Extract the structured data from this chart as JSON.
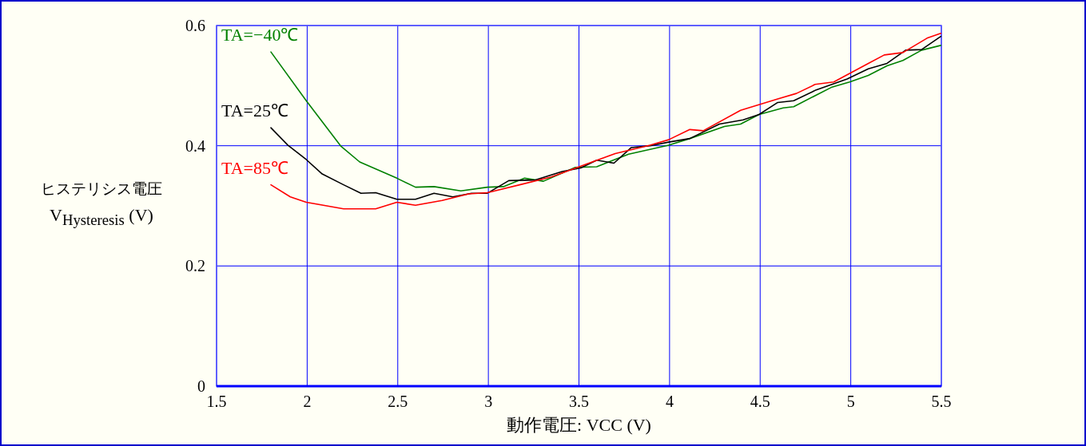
{
  "chart_data": {
    "type": "line",
    "xlabel": "動作電圧: VCC (V)",
    "ylabel": "ヒステリシス電圧\nV$_{Hysteresis}$ (V)",
    "xlim": [
      1.5,
      5.5
    ],
    "xticks": [
      1.5,
      2,
      2.5,
      3,
      3.5,
      4,
      4.5,
      5,
      5.5
    ],
    "ylim": [
      0,
      0.6
    ],
    "yticks": [
      0,
      0.2,
      0.4,
      0.6
    ],
    "grid": true,
    "series": [
      {
        "name": "TA=−40℃",
        "color": "#008000",
        "x": [
          1.8,
          1.995,
          2.187,
          2.29,
          2.495,
          2.598,
          2.7,
          2.848,
          2.995,
          3.083,
          3.2,
          3.304,
          3.48,
          3.598,
          3.774,
          3.995,
          4.112,
          4.303,
          4.392,
          4.494,
          4.627,
          4.685,
          4.892,
          4.994,
          5.097,
          5.2,
          5.288,
          5.391,
          5.497
        ],
        "values": [
          0.556,
          0.475,
          0.399,
          0.373,
          0.346,
          0.331,
          0.332,
          0.325,
          0.331,
          0.332,
          0.346,
          0.341,
          0.364,
          0.365,
          0.386,
          0.401,
          0.412,
          0.432,
          0.436,
          0.452,
          0.463,
          0.465,
          0.497,
          0.506,
          0.517,
          0.533,
          0.542,
          0.559,
          0.567
        ]
      },
      {
        "name": "TA=25℃",
        "color": "#000000",
        "x": [
          1.8,
          1.893,
          1.995,
          2.083,
          2.201,
          2.297,
          2.378,
          2.495,
          2.598,
          2.7,
          2.804,
          2.907,
          2.995,
          3.113,
          3.26,
          3.407,
          3.51,
          3.598,
          3.693,
          3.789,
          3.892,
          3.995,
          4.112,
          4.275,
          4.406,
          4.494,
          4.597,
          4.685,
          4.803,
          4.98,
          5.097,
          5.2,
          5.303,
          5.391,
          5.497
        ],
        "values": [
          0.43,
          0.401,
          0.377,
          0.353,
          0.335,
          0.321,
          0.322,
          0.311,
          0.311,
          0.321,
          0.315,
          0.321,
          0.321,
          0.342,
          0.343,
          0.357,
          0.363,
          0.376,
          0.371,
          0.397,
          0.4,
          0.406,
          0.412,
          0.436,
          0.443,
          0.452,
          0.472,
          0.475,
          0.492,
          0.511,
          0.528,
          0.537,
          0.559,
          0.56,
          0.582
        ]
      },
      {
        "name": "TA=85℃",
        "color": "#ff0000",
        "x": [
          1.8,
          1.907,
          1.995,
          2.201,
          2.378,
          2.495,
          2.598,
          2.745,
          2.892,
          2.995,
          3.186,
          3.348,
          3.51,
          3.7,
          3.892,
          3.995,
          4.112,
          4.186,
          4.392,
          4.597,
          4.7,
          4.803,
          4.906,
          5.097,
          5.185,
          5.288,
          5.421,
          5.497
        ],
        "values": [
          0.335,
          0.315,
          0.306,
          0.295,
          0.295,
          0.306,
          0.301,
          0.309,
          0.32,
          0.322,
          0.336,
          0.348,
          0.366,
          0.387,
          0.401,
          0.41,
          0.427,
          0.425,
          0.459,
          0.478,
          0.487,
          0.502,
          0.506,
          0.537,
          0.551,
          0.555,
          0.579,
          0.587
        ]
      }
    ]
  }
}
